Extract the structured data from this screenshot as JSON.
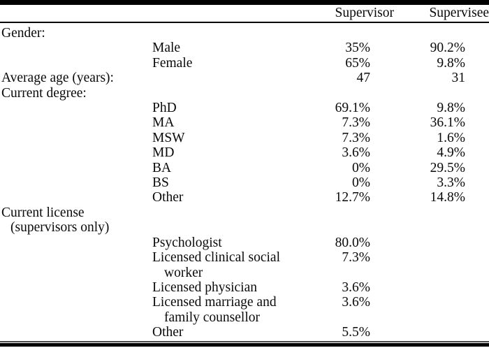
{
  "table": {
    "header": {
      "supervisor": "Supervisor",
      "supervisee": "Supervisee"
    },
    "rows": [
      {
        "group": "Gender:"
      },
      {
        "item": "Male",
        "supervisor": "35%",
        "supervisee": "90.2%"
      },
      {
        "item": "Female",
        "supervisor": "65%",
        "supervisee": "9.8%"
      },
      {
        "group": "Average age (years):",
        "supervisor": "47",
        "supervisee": "31"
      },
      {
        "group": "Current degree:"
      },
      {
        "item": "PhD",
        "supervisor": "69.1%",
        "supervisee": "9.8%"
      },
      {
        "item": "MA",
        "supervisor": "7.3%",
        "supervisee": "36.1%"
      },
      {
        "item": "MSW",
        "supervisor": "7.3%",
        "supervisee": "1.6%"
      },
      {
        "item": "MD",
        "supervisor": "3.6%",
        "supervisee": "4.9%"
      },
      {
        "item": "BA",
        "supervisor": "0%",
        "supervisee": "29.5%"
      },
      {
        "item": "BS",
        "supervisor": "0%",
        "supervisee": "3.3%"
      },
      {
        "item": "Other",
        "supervisor": "12.7%",
        "supervisee": "14.8%"
      },
      {
        "group": "Current license",
        "group_line2": "(supervisors only)"
      },
      {
        "item": "Psychologist",
        "supervisor": "80.0%"
      },
      {
        "item": "Licensed clinical social",
        "item_line2": "worker",
        "supervisor": "7.3%"
      },
      {
        "item": "Licensed physician",
        "supervisor": "3.6%"
      },
      {
        "item": "Licensed marriage and",
        "item_line2": "family counsellor",
        "supervisor": "3.6%"
      },
      {
        "item": "Other",
        "supervisor": "5.5%"
      }
    ],
    "colors": {
      "text": "#0a0a0a",
      "rule": "#000000"
    }
  }
}
